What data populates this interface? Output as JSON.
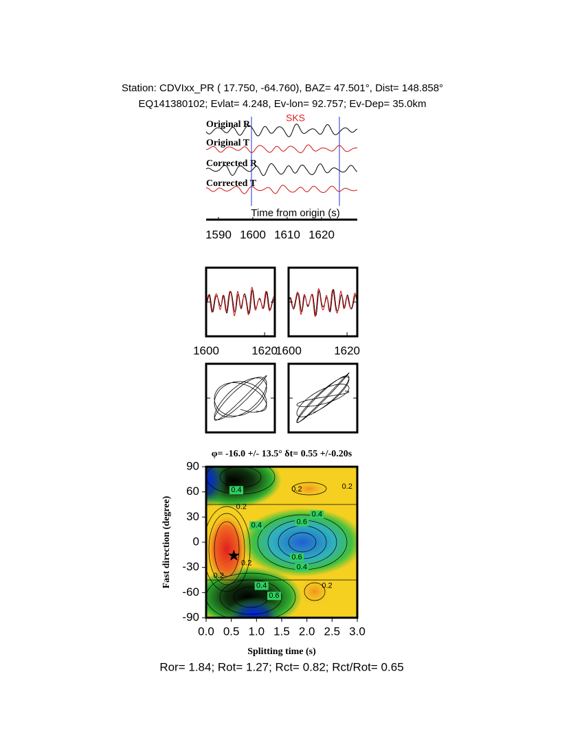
{
  "header": {
    "line1": "Station: CDVIxx_PR (  17.750,  -64.760), BAZ=   47.501°, Dist=  148.858°",
    "line2": "EQ141380102; Evlat=   4.248, Ev-lon=  92.757; Ev-Dep= 35.0km"
  },
  "traces": {
    "labels": [
      "Original R",
      "Original T",
      "Corrected R",
      "Corrected T"
    ],
    "phase": "SKS",
    "xlabel": "Time from origin (s)",
    "xlim": [
      1586.4,
      1630.4
    ],
    "xticks": [
      1590,
      1600,
      1610,
      1620
    ]
  },
  "windows": [
    {
      "xlim": [
        1600,
        1623.5
      ],
      "xticks": [
        1600,
        1620
      ]
    },
    {
      "xlim": [
        1600,
        1623.5
      ],
      "xticks": [
        1600,
        1620
      ]
    }
  ],
  "grid_search": {
    "title": "φ= -16.0 +/- 13.5° δt= 0.55 +/-0.20s",
    "xlabel": "Splitting time (s)",
    "ylabel": "Fast direction (degree)",
    "xlim": [
      0,
      3
    ],
    "ylim": [
      -90,
      90
    ],
    "xticks": [
      {
        "value": 0,
        "label": "0.0"
      },
      {
        "value": 0.5,
        "label": "0.5"
      },
      {
        "value": 1,
        "label": "1.0"
      },
      {
        "value": 1.5,
        "label": "1.5"
      },
      {
        "value": 2,
        "label": "2.0"
      },
      {
        "value": 2.5,
        "label": "2.5"
      },
      {
        "value": 3,
        "label": "3.0"
      }
    ],
    "yticks": [
      -90,
      -60,
      -30,
      0,
      30,
      60,
      90
    ],
    "best": {
      "x": 0.55,
      "y": -16
    },
    "contour_labels": [
      {
        "label": "0.4",
        "x": 0.6,
        "y": 62
      },
      {
        "label": "0.2",
        "x": 1.8,
        "y": 63
      },
      {
        "label": "0.2",
        "x": 2.8,
        "y": 66
      },
      {
        "label": "0.2",
        "x": 0.7,
        "y": 42
      },
      {
        "label": "0.4",
        "x": 2.2,
        "y": 33
      },
      {
        "label": "0.6",
        "x": 1.9,
        "y": 24
      },
      {
        "label": "0.4",
        "x": 1.0,
        "y": 20
      },
      {
        "label": "0.6",
        "x": 1.8,
        "y": -18
      },
      {
        "label": "0.4",
        "x": 1.9,
        "y": -30
      },
      {
        "label": "0.2",
        "x": 0.8,
        "y": -25
      },
      {
        "label": "0.4",
        "x": 1.1,
        "y": -52
      },
      {
        "label": "0.6",
        "x": 1.35,
        "y": -64
      },
      {
        "label": "0.2",
        "x": 2.4,
        "y": -52
      },
      {
        "label": "0.2",
        "x": 0.25,
        "y": -40
      }
    ]
  },
  "footer": "Ror= 1.84; Rot= 1.27; Rct= 0.82; Rct/Rot= 0.65"
}
